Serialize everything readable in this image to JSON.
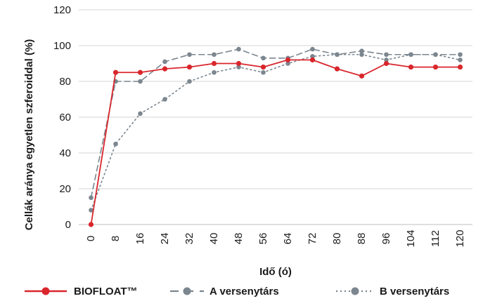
{
  "chart_data": {
    "type": "line",
    "title": "",
    "xlabel": "Idő (ó)",
    "ylabel": "Cellák aránya egyetlen szferoiddal (%)",
    "x": [
      0,
      8,
      16,
      24,
      32,
      40,
      48,
      56,
      64,
      72,
      80,
      88,
      96,
      104,
      112,
      120
    ],
    "x_tick_labels": [
      "0",
      "8",
      "16",
      "24",
      "32",
      "40",
      "48",
      "56",
      "64",
      "72",
      "80",
      "88",
      "96",
      "104",
      "112",
      "120"
    ],
    "y_ticks": [
      0,
      20,
      40,
      60,
      80,
      100,
      120
    ],
    "ylim": [
      0,
      120
    ],
    "grid": true,
    "legend_position": "bottom",
    "series": [
      {
        "name": "BIOFLOAT™",
        "style": "solid",
        "color": "#d9262c",
        "values": [
          0,
          85,
          85,
          87,
          88,
          90,
          90,
          88,
          92,
          92,
          87,
          83,
          90,
          88,
          88,
          88
        ]
      },
      {
        "name": "A versenytárs",
        "style": "dashed",
        "color": "#7b868f",
        "values": [
          15,
          80,
          80,
          91,
          95,
          95,
          98,
          93,
          93,
          98,
          95,
          97,
          95,
          95,
          95,
          95
        ]
      },
      {
        "name": "B versenytárs",
        "style": "dotted",
        "color": "#7b868f",
        "values": [
          8,
          45,
          62,
          70,
          80,
          85,
          88,
          85,
          90,
          94,
          95,
          95,
          92,
          95,
          95,
          92
        ]
      }
    ]
  }
}
